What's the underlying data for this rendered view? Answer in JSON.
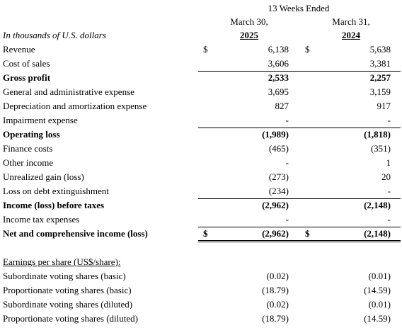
{
  "table": {
    "header": {
      "period": "13 Weeks Ended",
      "units": "In thousands of U.S. dollars",
      "columns": [
        {
          "date": "March 30,",
          "year": "2025"
        },
        {
          "date": "March 31,",
          "year": "2024"
        }
      ]
    },
    "rows": [
      {
        "label": "Revenue",
        "cells": [
          {
            "symbol": "$",
            "value": "6,138"
          },
          {
            "symbol": "$",
            "value": "5,638"
          }
        ]
      },
      {
        "label": "Cost of sales",
        "cells": [
          {
            "value": "3,606"
          },
          {
            "value": "3,381"
          }
        ]
      },
      {
        "label": "Gross profit",
        "cells": [
          {
            "value": "2,533"
          },
          {
            "value": "2,257"
          }
        ]
      },
      {
        "label": "General and administrative expense",
        "cells": [
          {
            "value": "3,695"
          },
          {
            "value": "3,159"
          }
        ]
      },
      {
        "label": "Depreciation and amortization expense",
        "cells": [
          {
            "value": "827"
          },
          {
            "value": "917"
          }
        ]
      },
      {
        "label": "Impairment expense",
        "cells": [
          {
            "value": "-"
          },
          {
            "value": "-"
          }
        ]
      },
      {
        "label": "Operating loss",
        "cells": [
          {
            "value": "(1,989)"
          },
          {
            "value": "(1,818)"
          }
        ]
      },
      {
        "label": "Finance costs",
        "cells": [
          {
            "value": "(465)"
          },
          {
            "value": "(351)"
          }
        ]
      },
      {
        "label": "Other income",
        "cells": [
          {
            "value": "-"
          },
          {
            "value": "1"
          }
        ]
      },
      {
        "label": "Unrealized gain (loss)",
        "cells": [
          {
            "value": "(273)"
          },
          {
            "value": "20"
          }
        ]
      },
      {
        "label": "Loss on debt extinguishment",
        "cells": [
          {
            "value": "(234)"
          },
          {
            "value": "-"
          }
        ]
      },
      {
        "label": "Income (loss) before taxes",
        "cells": [
          {
            "value": "(2,962)"
          },
          {
            "value": "(2,148)"
          }
        ]
      },
      {
        "label": "Income tax expenses",
        "cells": [
          {
            "value": "-"
          },
          {
            "value": "-"
          }
        ]
      },
      {
        "label": "Net and comprehensive income (loss)",
        "cells": [
          {
            "symbol": "$",
            "value": "(2,962)"
          },
          {
            "symbol": "$",
            "value": "(2,148)"
          }
        ]
      }
    ],
    "eps_title": "Earnings per share (US$/share):",
    "eps_rows": [
      {
        "label": "Subordinate voting shares (basic)",
        "cells": [
          {
            "value": "(0.02)"
          },
          {
            "value": "(0.01)"
          }
        ]
      },
      {
        "label": "Proportionate voting shares (basic)",
        "cells": [
          {
            "value": "(18.79)"
          },
          {
            "value": "(14.59)"
          }
        ]
      },
      {
        "label": "Subordinate voting shares (diluted)",
        "cells": [
          {
            "value": "(0.02)"
          },
          {
            "value": "(0.01)"
          }
        ]
      },
      {
        "label": "Proportionate voting shares (diluted)",
        "cells": [
          {
            "value": "(18.79)"
          },
          {
            "value": "(14.59)"
          }
        ]
      }
    ]
  }
}
